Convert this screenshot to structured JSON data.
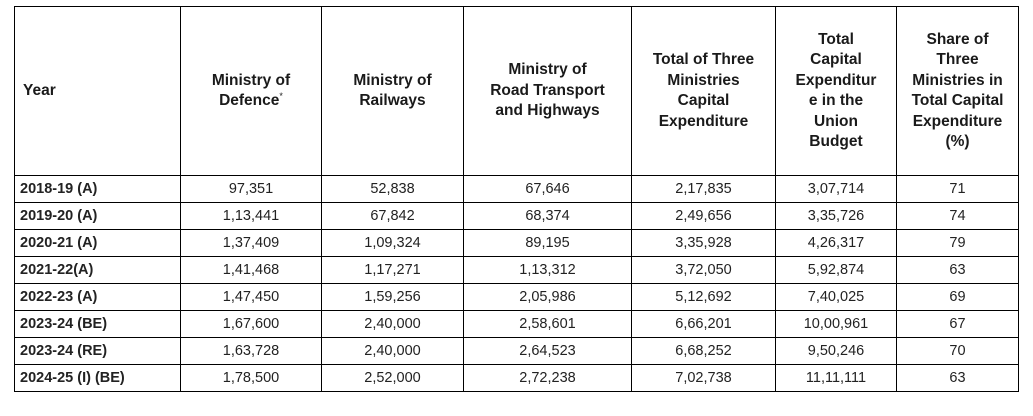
{
  "table": {
    "headers": [
      "Year",
      "Ministry of\nDefence",
      "Ministry of\nRailways",
      "Ministry of\nRoad Transport\nand Highways",
      "Total of Three\nMinistries\nCapital\nExpenditure",
      "Total\nCapital\nExpenditur\ne in the\nUnion\nBudget",
      "Share of\nThree\nMinistries in\nTotal Capital\nExpenditure\n(%)"
    ],
    "defence_footnote_mark": "*",
    "rows": [
      [
        "2018-19 (A)",
        "97,351",
        "52,838",
        "67,646",
        "2,17,835",
        "3,07,714",
        "71"
      ],
      [
        "2019-20 (A)",
        "1,13,441",
        "67,842",
        "68,374",
        "2,49,656",
        "3,35,726",
        "74"
      ],
      [
        "2020-21 (A)",
        "1,37,409",
        "1,09,324",
        "89,195",
        "3,35,928",
        "4,26,317",
        "79"
      ],
      [
        "2021-22(A)",
        "1,41,468",
        "1,17,271",
        "1,13,312",
        "3,72,050",
        "5,92,874",
        "63"
      ],
      [
        "2022-23 (A)",
        "1,47,450",
        "1,59,256",
        "2,05,986",
        "5,12,692",
        "7,40,025",
        "69"
      ],
      [
        "2023-24 (BE)",
        "1,67,600",
        "2,40,000",
        "2,58,601",
        "6,66,201",
        "10,00,961",
        "67"
      ],
      [
        "2023-24 (RE)",
        "1,63,728",
        "2,40,000",
        "2,64,523",
        "6,68,252",
        "9,50,246",
        "70"
      ],
      [
        "2024-25 (I) (BE)",
        "1,78,500",
        "2,52,000",
        "2,72,238",
        "7,02,738",
        "11,11,111",
        "63"
      ]
    ]
  }
}
